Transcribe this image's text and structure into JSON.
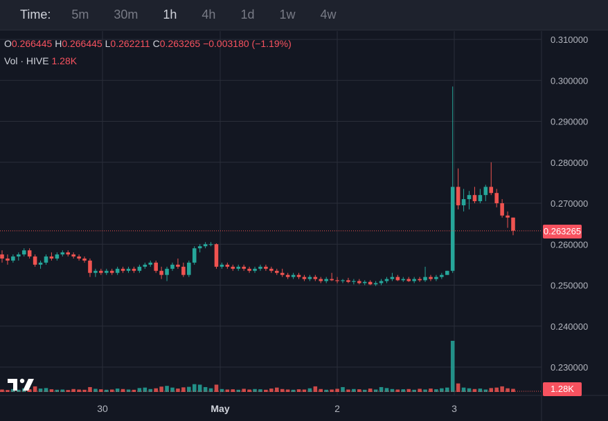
{
  "toolbar": {
    "label": "Time:",
    "timeframes": [
      "5m",
      "30m",
      "1h",
      "4h",
      "1d",
      "1w",
      "4w"
    ],
    "active": "1h"
  },
  "legend": {
    "o_key": "O",
    "o_val": "0.266445",
    "h_key": "H",
    "h_val": "0.266445",
    "l_key": "L",
    "l_val": "0.262211",
    "c_key": "C",
    "c_val": "0.263265",
    "change": "−0.003180 (−1.19%)",
    "vol_label": "Vol · HIVE",
    "vol_val": "1.28K"
  },
  "price_tag": "0.263265",
  "vol_tag": "1.28K",
  "colors": {
    "up": "#26a69a",
    "down": "#ef5350",
    "bg": "#131722",
    "grid": "#2a2e39"
  },
  "chart_data": {
    "type": "candlestick",
    "y_ticks": [
      "0.310000",
      "0.300000",
      "0.290000",
      "0.280000",
      "0.270000",
      "0.260000",
      "0.250000",
      "0.240000",
      "0.230000"
    ],
    "x_ticks": [
      "30",
      "May",
      "2",
      "3"
    ],
    "ylim": [
      0.226,
      0.311
    ],
    "last_price": 0.263265,
    "candles": [
      [
        0.2575,
        0.2585,
        0.2555,
        0.2565
      ],
      [
        0.2565,
        0.2575,
        0.255,
        0.256
      ],
      [
        0.256,
        0.2575,
        0.2555,
        0.257
      ],
      [
        0.257,
        0.258,
        0.256,
        0.2575
      ],
      [
        0.2575,
        0.259,
        0.257,
        0.2585
      ],
      [
        0.2585,
        0.259,
        0.2565,
        0.257
      ],
      [
        0.257,
        0.2575,
        0.2545,
        0.255
      ],
      [
        0.255,
        0.256,
        0.254,
        0.2555
      ],
      [
        0.2555,
        0.2575,
        0.255,
        0.257
      ],
      [
        0.257,
        0.258,
        0.256,
        0.2565
      ],
      [
        0.2565,
        0.258,
        0.256,
        0.2575
      ],
      [
        0.2575,
        0.2585,
        0.257,
        0.258
      ],
      [
        0.258,
        0.2585,
        0.257,
        0.2575
      ],
      [
        0.2575,
        0.258,
        0.2565,
        0.257
      ],
      [
        0.257,
        0.2575,
        0.256,
        0.2565
      ],
      [
        0.2565,
        0.257,
        0.2555,
        0.256
      ],
      [
        0.256,
        0.2565,
        0.252,
        0.253
      ],
      [
        0.253,
        0.254,
        0.252,
        0.2535
      ],
      [
        0.2535,
        0.254,
        0.2525,
        0.253
      ],
      [
        0.253,
        0.254,
        0.2525,
        0.2535
      ],
      [
        0.2535,
        0.254,
        0.2525,
        0.253
      ],
      [
        0.253,
        0.2545,
        0.2525,
        0.254
      ],
      [
        0.254,
        0.2545,
        0.253,
        0.2535
      ],
      [
        0.2535,
        0.2545,
        0.253,
        0.254
      ],
      [
        0.254,
        0.2545,
        0.253,
        0.2535
      ],
      [
        0.2535,
        0.255,
        0.253,
        0.2545
      ],
      [
        0.2545,
        0.2555,
        0.254,
        0.255
      ],
      [
        0.255,
        0.256,
        0.2545,
        0.2555
      ],
      [
        0.2555,
        0.256,
        0.253,
        0.2535
      ],
      [
        0.2535,
        0.2545,
        0.2515,
        0.2525
      ],
      [
        0.2525,
        0.2545,
        0.251,
        0.254
      ],
      [
        0.254,
        0.2555,
        0.2535,
        0.255
      ],
      [
        0.255,
        0.2565,
        0.254,
        0.2545
      ],
      [
        0.2545,
        0.2555,
        0.252,
        0.2525
      ],
      [
        0.2525,
        0.256,
        0.252,
        0.2555
      ],
      [
        0.2555,
        0.2595,
        0.255,
        0.259
      ],
      [
        0.259,
        0.26,
        0.258,
        0.2595
      ],
      [
        0.2595,
        0.2605,
        0.259,
        0.26
      ],
      [
        0.26,
        0.2605,
        0.2595,
        0.26
      ],
      [
        0.26,
        0.2602,
        0.254,
        0.2545
      ],
      [
        0.2545,
        0.2555,
        0.254,
        0.255
      ],
      [
        0.255,
        0.2555,
        0.254,
        0.2545
      ],
      [
        0.2545,
        0.255,
        0.2535,
        0.254
      ],
      [
        0.254,
        0.255,
        0.2535,
        0.2545
      ],
      [
        0.2545,
        0.255,
        0.2535,
        0.254
      ],
      [
        0.254,
        0.2545,
        0.253,
        0.2535
      ],
      [
        0.2535,
        0.2545,
        0.253,
        0.254
      ],
      [
        0.254,
        0.255,
        0.2535,
        0.2545
      ],
      [
        0.2545,
        0.255,
        0.2535,
        0.254
      ],
      [
        0.254,
        0.2545,
        0.253,
        0.2535
      ],
      [
        0.2535,
        0.254,
        0.2525,
        0.253
      ],
      [
        0.253,
        0.254,
        0.252,
        0.2525
      ],
      [
        0.2525,
        0.253,
        0.2515,
        0.252
      ],
      [
        0.252,
        0.253,
        0.2515,
        0.2525
      ],
      [
        0.2525,
        0.253,
        0.2515,
        0.252
      ],
      [
        0.252,
        0.2525,
        0.251,
        0.2515
      ],
      [
        0.2515,
        0.2525,
        0.251,
        0.252
      ],
      [
        0.252,
        0.2525,
        0.251,
        0.2515
      ],
      [
        0.2515,
        0.252,
        0.2505,
        0.251
      ],
      [
        0.251,
        0.252,
        0.2505,
        0.2515
      ],
      [
        0.2515,
        0.253,
        0.251,
        0.2512
      ],
      [
        0.2512,
        0.252,
        0.2505,
        0.251
      ],
      [
        0.251,
        0.2515,
        0.2505,
        0.2512
      ],
      [
        0.2512,
        0.2518,
        0.2505,
        0.2508
      ],
      [
        0.2508,
        0.2515,
        0.2502,
        0.251
      ],
      [
        0.251,
        0.2515,
        0.2502,
        0.2505
      ],
      [
        0.2505,
        0.2512,
        0.25,
        0.2508
      ],
      [
        0.2508,
        0.2512,
        0.25,
        0.2502
      ],
      [
        0.2502,
        0.251,
        0.2498,
        0.2505
      ],
      [
        0.2505,
        0.2515,
        0.25,
        0.251
      ],
      [
        0.251,
        0.252,
        0.2505,
        0.2515
      ],
      [
        0.2515,
        0.253,
        0.251,
        0.252
      ],
      [
        0.252,
        0.2525,
        0.251,
        0.2512
      ],
      [
        0.2512,
        0.252,
        0.2508,
        0.2515
      ],
      [
        0.2515,
        0.252,
        0.2508,
        0.251
      ],
      [
        0.251,
        0.252,
        0.2505,
        0.2515
      ],
      [
        0.2515,
        0.252,
        0.2508,
        0.2512
      ],
      [
        0.2512,
        0.2545,
        0.2508,
        0.252
      ],
      [
        0.252,
        0.2525,
        0.251,
        0.2515
      ],
      [
        0.2515,
        0.2525,
        0.251,
        0.252
      ],
      [
        0.252,
        0.253,
        0.2515,
        0.2525
      ],
      [
        0.2525,
        0.2535,
        0.2525,
        0.2535
      ],
      [
        0.2535,
        0.2985,
        0.253,
        0.274
      ],
      [
        0.274,
        0.2785,
        0.2685,
        0.2695
      ],
      [
        0.2695,
        0.2735,
        0.268,
        0.271
      ],
      [
        0.271,
        0.273,
        0.2685,
        0.272
      ],
      [
        0.272,
        0.274,
        0.27,
        0.2705
      ],
      [
        0.2705,
        0.2735,
        0.27,
        0.272
      ],
      [
        0.272,
        0.2745,
        0.2705,
        0.274
      ],
      [
        0.274,
        0.28,
        0.272,
        0.2725
      ],
      [
        0.2725,
        0.2735,
        0.269,
        0.27
      ],
      [
        0.27,
        0.271,
        0.2665,
        0.267
      ],
      [
        0.267,
        0.268,
        0.264,
        0.2665
      ],
      [
        0.2665,
        0.2665,
        0.2622,
        0.2633
      ]
    ],
    "volume": [
      1.0,
      0.8,
      1.2,
      0.9,
      1.5,
      1.1,
      2.3,
      1.4,
      1.6,
      1.1,
      0.9,
      1.0,
      0.8,
      1.2,
      1.0,
      0.9,
      2.0,
      1.3,
      1.1,
      0.9,
      1.0,
      1.4,
      1.2,
      1.0,
      0.9,
      1.6,
      1.8,
      1.2,
      1.5,
      2.2,
      2.5,
      1.8,
      1.4,
      1.9,
      2.1,
      3.2,
      3.0,
      2.0,
      1.5,
      3.0,
      1.2,
      1.0,
      1.1,
      0.9,
      1.3,
      1.0,
      1.2,
      1.1,
      0.9,
      1.4,
      1.8,
      1.2,
      1.0,
      0.9,
      1.1,
      1.0,
      1.5,
      2.3,
      1.2,
      0.9,
      1.0,
      1.3,
      2.0,
      1.0,
      1.2,
      1.1,
      0.9,
      1.4,
      1.0,
      2.0,
      1.6,
      1.2,
      1.0,
      1.1,
      1.2,
      0.9,
      1.3,
      1.0,
      1.4,
      1.1,
      1.5,
      1.8,
      21.0,
      3.5,
      1.8,
      1.5,
      1.2,
      1.4,
      1.0,
      1.6,
      1.8,
      2.3,
      1.5,
      1.28
    ]
  }
}
